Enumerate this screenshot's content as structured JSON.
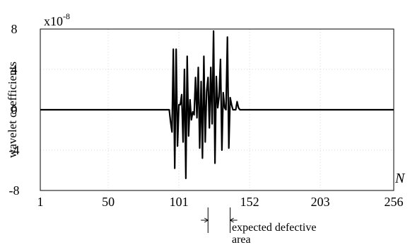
{
  "chart_data": {
    "type": "line",
    "ylabel": "wavelet coefficients",
    "xlabel": "N",
    "y_multiplier": "x10",
    "y_multiplier_exp": "-8",
    "xlim": [
      1,
      256
    ],
    "ylim": [
      -8,
      8
    ],
    "x_ticks": [
      1,
      50,
      101,
      152,
      203,
      256
    ],
    "y_ticks": [
      {
        "value": 8,
        "label": "8"
      },
      {
        "value": 4,
        "label": "4"
      },
      {
        "value": 0,
        "label": "0"
      },
      {
        "value": -4,
        "label": "-4"
      },
      {
        "value": -8,
        "label": "-8"
      }
    ],
    "grid": true,
    "series": [
      {
        "x": [
          1,
          94,
          95,
          96,
          97,
          98,
          99,
          100,
          101,
          102,
          103,
          104,
          105,
          106,
          107,
          108,
          109,
          110,
          111,
          112,
          113,
          114,
          115,
          116,
          117,
          118,
          119,
          120,
          121,
          122,
          123,
          124,
          125,
          126,
          127,
          128,
          129,
          130,
          131,
          132,
          133,
          134,
          135,
          136,
          137,
          138,
          139,
          140,
          141,
          142,
          143,
          144,
          145,
          146,
          256
        ],
        "y": [
          0,
          0,
          -1.2,
          -2.2,
          6,
          -5.8,
          6,
          -3.6,
          0.5,
          0.5,
          1.5,
          -3.2,
          4,
          -6.8,
          5.3,
          -2.6,
          1,
          -1,
          -0.2,
          -0.5,
          3.2,
          -0.8,
          4.2,
          -3.8,
          2.8,
          -4.8,
          5.3,
          -3.2,
          1.8,
          3.2,
          -1.8,
          4.2,
          -1.4,
          7.8,
          -5.3,
          3.3,
          0.2,
          1.3,
          5,
          -4,
          1.7,
          0.2,
          0,
          7.2,
          -3.8,
          1.2,
          0.5,
          0,
          0,
          0,
          0.8,
          0.2,
          0,
          0,
          0
        ]
      }
    ],
    "annotation": {
      "text_line1": "expected defective",
      "text_line2": "area",
      "x_start": 122,
      "x_end": 138
    }
  }
}
